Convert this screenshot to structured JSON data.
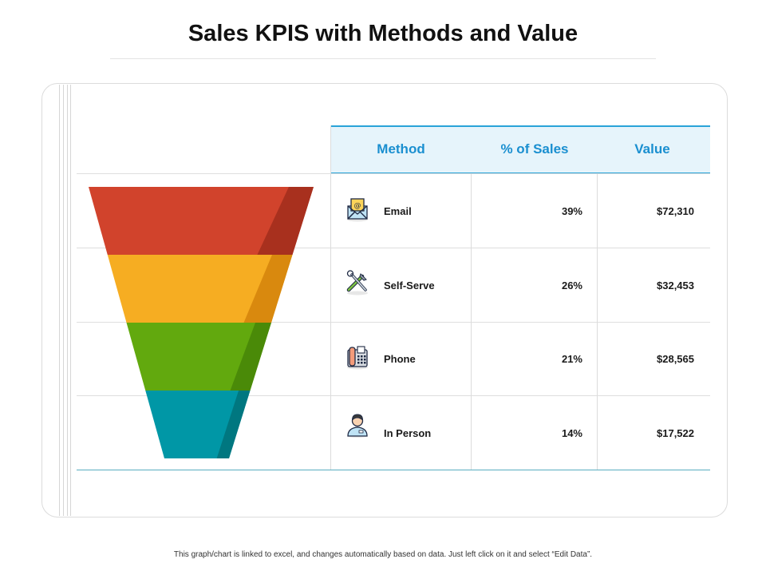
{
  "title": "Sales KPIS with Methods and Value",
  "footer_note": "This graph/chart is linked to excel, and changes automatically based on data. Just left click on it and select “Edit Data”.",
  "table": {
    "headers": [
      "Method",
      "% of Sales",
      "Value"
    ],
    "rows": [
      {
        "method": "Email",
        "pct": "39%",
        "value": "$72,310",
        "icon": "email-icon"
      },
      {
        "method": "Self-Serve",
        "pct": "26%",
        "value": "$32,453",
        "icon": "tools-icon"
      },
      {
        "method": "Phone",
        "pct": "21%",
        "value": "$28,565",
        "icon": "phone-icon"
      },
      {
        "method": "In Person",
        "pct": "14%",
        "value": "$17,522",
        "icon": "person-icon"
      }
    ]
  },
  "chart_data": {
    "type": "table",
    "categories": [
      "Email",
      "Self-Serve",
      "Phone",
      "In Person"
    ],
    "series": [
      {
        "name": "% of Sales",
        "values": [
          39,
          26,
          21,
          14
        ]
      },
      {
        "name": "Value",
        "values": [
          72310,
          32453,
          28565,
          17522
        ]
      }
    ],
    "funnel_colors": [
      "#d1432c",
      "#f6ad22",
      "#62a90e",
      "#0097a6"
    ],
    "funnel_shade_colors": [
      "#a8301e",
      "#d9890e",
      "#4a8a08",
      "#007780"
    ]
  }
}
